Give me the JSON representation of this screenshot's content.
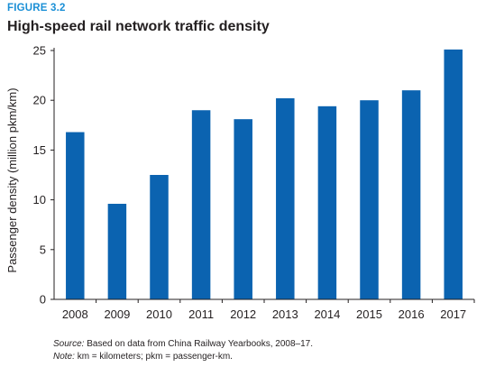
{
  "figure": {
    "label": "FIGURE 3.2",
    "title": "High-speed rail network traffic density"
  },
  "colors": {
    "bar": "#0b63b0",
    "label": "#1a8fd6",
    "axis": "#231f20",
    "text": "#231f20"
  },
  "chart_data": {
    "type": "bar",
    "title": "High-speed rail network traffic density",
    "xlabel": "",
    "ylabel": "Passenger density (million pkm/km)",
    "categories": [
      "2008",
      "2009",
      "2010",
      "2011",
      "2012",
      "2013",
      "2014",
      "2015",
      "2016",
      "2017"
    ],
    "values": [
      16.8,
      9.6,
      12.5,
      19.0,
      18.1,
      20.2,
      19.4,
      20.0,
      21.0,
      25.1
    ],
    "ylim": [
      0,
      25
    ],
    "yticks": [
      0,
      5,
      10,
      15,
      20,
      25
    ],
    "grid": false,
    "legend": "none"
  },
  "notes": {
    "source_label": "Source:",
    "source_text": "Based on data from China Railway Yearbooks, 2008–17.",
    "note_label": "Note:",
    "note_text": "km = kilometers; pkm = passenger-km."
  }
}
